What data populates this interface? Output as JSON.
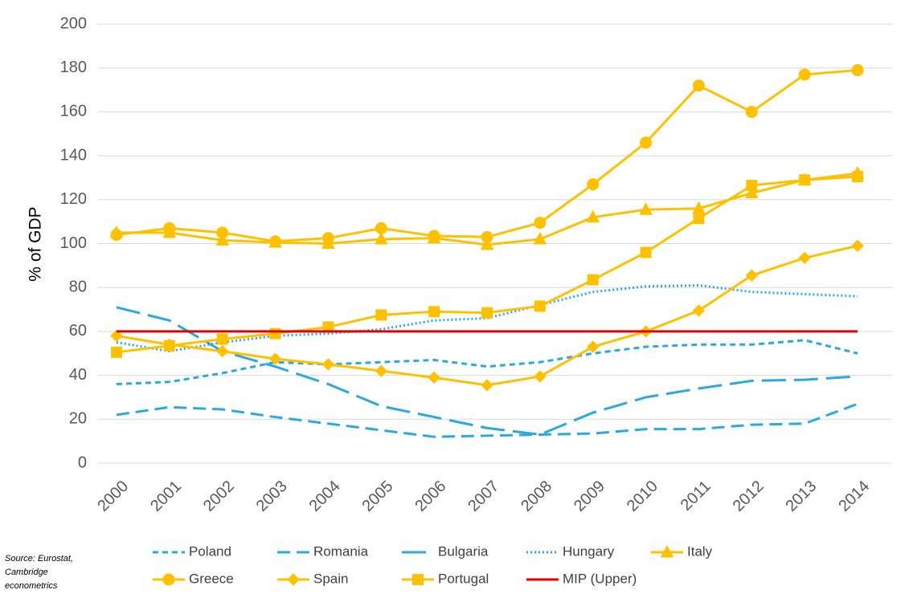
{
  "chart_data": {
    "type": "line",
    "y_label": "% of GDP",
    "note": [
      "Source: Eurostat,",
      "Cambridge",
      "econometrics"
    ],
    "categories": [
      "2000",
      "2001",
      "2002",
      "2003",
      "2004",
      "2005",
      "2006",
      "2007",
      "2008",
      "2009",
      "2010",
      "2011",
      "2012",
      "2013",
      "2014"
    ],
    "ylim": [
      0,
      200
    ],
    "yticks": [
      0,
      20,
      40,
      60,
      80,
      100,
      120,
      140,
      160,
      180,
      200
    ],
    "grid": true,
    "series": [
      {
        "name": "Poland",
        "color": "#29a9e0",
        "dash": "short",
        "marker": "none",
        "values": [
          36,
          37,
          41,
          46,
          45,
          46,
          47,
          44,
          46,
          50,
          53,
          54,
          54,
          56,
          50
        ]
      },
      {
        "name": "Romania",
        "color": "#29a9e0",
        "dash": "medium",
        "marker": "none",
        "values": [
          22,
          25.5,
          24.5,
          21,
          18,
          15,
          12,
          12.5,
          13,
          13.5,
          15.5,
          15.5,
          17.5,
          18,
          27
        ]
      },
      {
        "name": "Bulgaria",
        "color": "#29a9e0",
        "dash": "long",
        "marker": "none",
        "values": [
          71,
          65,
          51,
          44,
          36,
          26,
          21,
          16,
          13,
          23,
          30,
          34,
          37.5,
          38,
          39.5
        ]
      },
      {
        "name": "Hungary",
        "color": "#29a9e0",
        "dash": "dotted",
        "marker": "none",
        "values": [
          55,
          51,
          55,
          58,
          59,
          61,
          65,
          66,
          72,
          78,
          80.5,
          81,
          78,
          77,
          76
        ]
      },
      {
        "name": "Italy",
        "color": "#ffc000",
        "dash": "solid",
        "marker": "triangle",
        "values": [
          105,
          105,
          101.5,
          100.5,
          100,
          102,
          102.5,
          99.5,
          102,
          112,
          115.5,
          116,
          123,
          129,
          132
        ]
      },
      {
        "name": "Greece",
        "color": "#ffc000",
        "dash": "solid",
        "marker": "circle",
        "values": [
          104,
          107,
          105,
          101,
          102.5,
          107,
          103.5,
          103,
          109.5,
          127,
          146,
          172,
          160,
          177,
          179
        ]
      },
      {
        "name": "Spain",
        "color": "#ffc000",
        "dash": "solid",
        "marker": "diamond",
        "values": [
          58,
          54,
          51,
          47.5,
          45,
          42,
          39,
          35.5,
          39.5,
          53,
          60,
          69.5,
          85.5,
          93.5,
          99
        ]
      },
      {
        "name": "Portugal",
        "color": "#ffc000",
        "dash": "solid",
        "marker": "square",
        "values": [
          50.5,
          53.5,
          56.5,
          59,
          62,
          67.5,
          69,
          68.5,
          71.5,
          83.5,
          96,
          111.5,
          126.5,
          129,
          130.5
        ]
      },
      {
        "name": "MIP (Upper)",
        "color": "#e00000",
        "dash": "solid",
        "marker": "none",
        "values": [
          60,
          60,
          60,
          60,
          60,
          60,
          60,
          60,
          60,
          60,
          60,
          60,
          60,
          60,
          60
        ]
      }
    ]
  }
}
